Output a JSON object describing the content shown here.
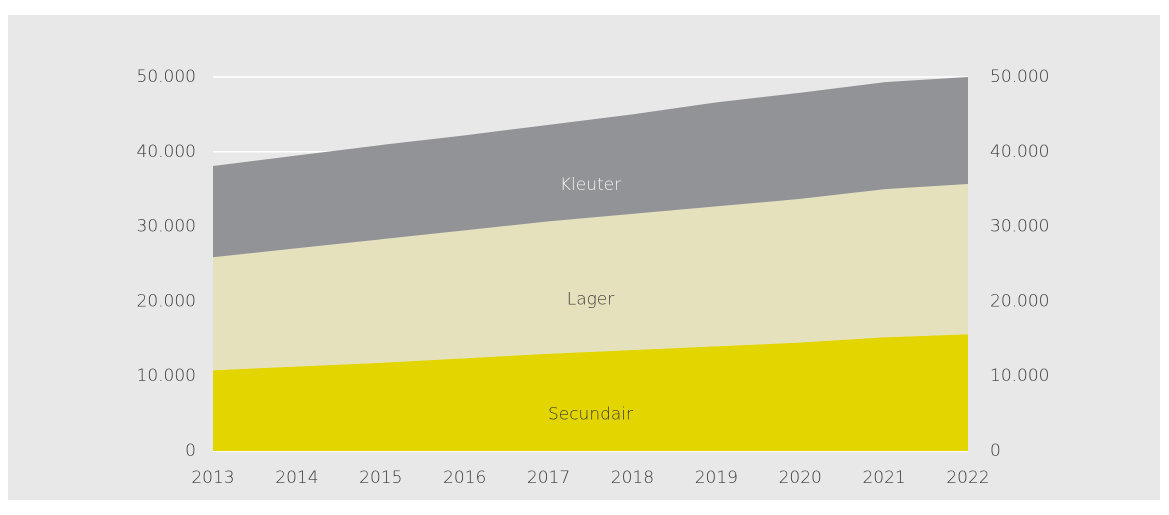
{
  "chart_data": {
    "type": "stacked-area",
    "x": [
      2013,
      2014,
      2015,
      2016,
      2017,
      2018,
      2019,
      2020,
      2021,
      2022
    ],
    "xlim": [
      2013,
      2022
    ],
    "xticks": [
      2013,
      2014,
      2015,
      2016,
      2017,
      2018,
      2019,
      2020,
      2021,
      2022
    ],
    "series": [
      {
        "name": "Secundair",
        "color": "#e3d500",
        "values": [
          10800,
          11300,
          11800,
          12400,
          13000,
          13500,
          14000,
          14500,
          15200,
          15600
        ]
      },
      {
        "name": "Lager",
        "color": "#e6e1bd",
        "values": [
          15100,
          15800,
          16500,
          17100,
          17700,
          18200,
          18700,
          19200,
          19800,
          20100
        ]
      },
      {
        "name": "Kleuter",
        "color": "#929396",
        "values": [
          12200,
          12400,
          12600,
          12700,
          12900,
          13300,
          13900,
          14200,
          14300,
          14300
        ]
      }
    ],
    "ylim": [
      0,
      50000
    ],
    "yticks": [
      0,
      {
        "value": 10000,
        "label": "10.000"
      },
      {
        "value": 20000,
        "label": "20.000"
      },
      {
        "value": 30000,
        "label": "30.000"
      },
      {
        "value": 40000,
        "label": "40.000"
      },
      {
        "value": 50000,
        "label": "50.000"
      }
    ],
    "y2lim": [
      0,
      50000
    ],
    "y2ticks": [
      0,
      {
        "value": 10000,
        "label": "10.000"
      },
      {
        "value": 20000,
        "label": "20.000"
      },
      {
        "value": 30000,
        "label": "30.000"
      },
      {
        "value": 40000,
        "label": "40.000"
      },
      {
        "value": 50000,
        "label": "50.000"
      }
    ],
    "grid": true
  }
}
